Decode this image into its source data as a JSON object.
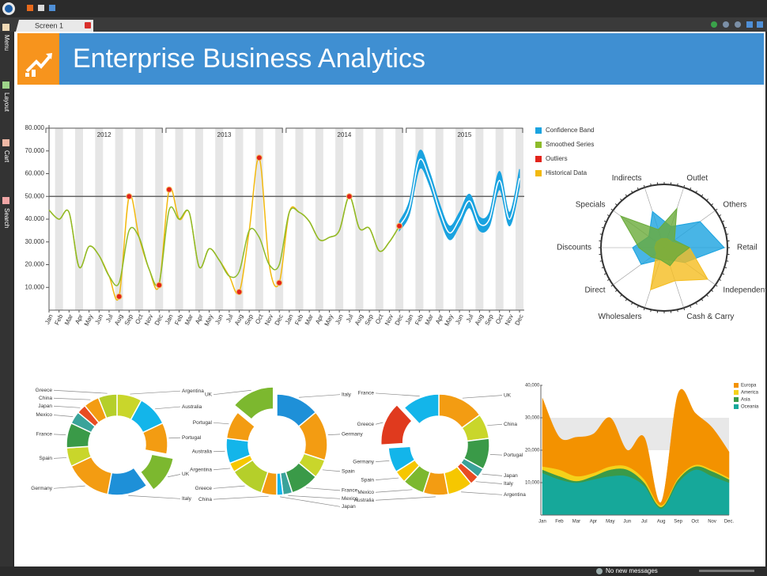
{
  "tab": {
    "title": "Screen 1"
  },
  "sidebar": {
    "items": [
      "Menu",
      "Layout",
      "Cart",
      "Search"
    ]
  },
  "header": {
    "title": "Enterprise Business Analytics"
  },
  "status": {
    "message": "No new messages"
  },
  "chart_data": [
    {
      "type": "line",
      "categories": [
        "Jan",
        "Feb",
        "Mar",
        "Apr",
        "May",
        "Jun",
        "Jul",
        "Aug",
        "Sep",
        "Oct",
        "Nov",
        "Dec",
        "Jan",
        "Feb",
        "Mar",
        "Apr",
        "May",
        "Jun",
        "Jul",
        "Aug",
        "Sep",
        "Oct",
        "Nov",
        "Dec",
        "Jan",
        "Feb",
        "Mar",
        "Apr",
        "May",
        "Jun",
        "Jul",
        "Aug",
        "Sep",
        "Oct",
        "Nov",
        "Dec",
        "Jan",
        "Feb",
        "Mar",
        "Apr",
        "May",
        "Jun",
        "Jul",
        "Aug",
        "Sep",
        "Oct",
        "Nov",
        "Dec"
      ],
      "year_labels": [
        "2012",
        "2013",
        "2014",
        "2015"
      ],
      "ylim": [
        0,
        80000
      ],
      "yticks": [
        {
          "value": 10000,
          "label": "10.000"
        },
        {
          "value": 20000,
          "label": "20.000"
        },
        {
          "value": 30000,
          "label": "30.000"
        },
        {
          "value": 40000,
          "label": "40.000"
        },
        {
          "value": 50000,
          "label": "50.000"
        },
        {
          "value": 60000,
          "label": "60.000"
        },
        {
          "value": 70000,
          "label": "70.000"
        },
        {
          "value": 80000,
          "label": "80.000"
        }
      ],
      "threshold": 50000,
      "series": [
        {
          "name": "Confidence Band",
          "type": "range",
          "color": "#1aa3e0",
          "values": [
            null,
            null,
            null,
            null,
            null,
            null,
            null,
            null,
            null,
            null,
            null,
            null,
            null,
            null,
            null,
            null,
            null,
            null,
            null,
            null,
            null,
            null,
            null,
            null,
            null,
            null,
            null,
            null,
            null,
            null,
            null,
            null,
            null,
            null,
            null,
            37000,
            45000,
            66000,
            58000,
            44000,
            34000,
            40000,
            48000,
            38000,
            40000,
            57000,
            40000,
            58000
          ],
          "upper": [
            null,
            null,
            null,
            null,
            null,
            null,
            null,
            null,
            null,
            null,
            null,
            null,
            null,
            null,
            null,
            null,
            null,
            null,
            null,
            null,
            null,
            null,
            null,
            null,
            null,
            null,
            null,
            null,
            null,
            null,
            null,
            null,
            null,
            null,
            null,
            39000,
            48000,
            70000,
            61000,
            47000,
            37000,
            43000,
            51000,
            41000,
            43000,
            61000,
            43000,
            62000
          ],
          "lower": [
            null,
            null,
            null,
            null,
            null,
            null,
            null,
            null,
            null,
            null,
            null,
            null,
            null,
            null,
            null,
            null,
            null,
            null,
            null,
            null,
            null,
            null,
            null,
            null,
            null,
            null,
            null,
            null,
            null,
            null,
            null,
            null,
            null,
            null,
            null,
            35000,
            42000,
            62000,
            55000,
            41000,
            31000,
            37000,
            45000,
            35000,
            37000,
            53000,
            37000,
            54000
          ]
        },
        {
          "name": "Smoothed Series",
          "type": "line",
          "color": "#8dbb2a",
          "values": [
            44000,
            40000,
            43000,
            19000,
            28000,
            24000,
            15000,
            12000,
            35000,
            32000,
            18000,
            12000,
            44000,
            40000,
            43000,
            19000,
            27000,
            22000,
            15000,
            17000,
            35000,
            32000,
            20000,
            20000,
            43000,
            43000,
            39000,
            31000,
            32000,
            35000,
            50000,
            36000,
            36000,
            26000,
            30000,
            37000,
            null,
            null,
            null,
            null,
            null,
            null,
            null,
            null,
            null,
            null,
            null,
            null
          ]
        },
        {
          "name": "Outliers",
          "type": "scatter",
          "color": "#e2231a",
          "values": [
            null,
            null,
            null,
            null,
            null,
            null,
            null,
            6000,
            50000,
            null,
            null,
            11000,
            53000,
            null,
            null,
            null,
            null,
            null,
            null,
            8000,
            null,
            67000,
            null,
            12000,
            null,
            null,
            null,
            null,
            null,
            null,
            50000,
            null,
            null,
            null,
            null,
            37000,
            null,
            null,
            null,
            null,
            null,
            null,
            null,
            null,
            null,
            null,
            null,
            null
          ]
        },
        {
          "name": "Historical Data",
          "type": "line",
          "color": "#f2b90f",
          "values": [
            44000,
            40000,
            43000,
            19000,
            28000,
            24000,
            15000,
            6000,
            50000,
            32000,
            18000,
            11000,
            53000,
            40000,
            43000,
            19000,
            27000,
            22000,
            15000,
            8000,
            35000,
            67000,
            20000,
            12000,
            43000,
            43000,
            39000,
            31000,
            32000,
            35000,
            50000,
            36000,
            36000,
            26000,
            30000,
            37000,
            null,
            null,
            null,
            null,
            null,
            null,
            null,
            null,
            null,
            null,
            null,
            null
          ]
        }
      ]
    },
    {
      "type": "radar",
      "categories": [
        "Retail",
        "Independents",
        "Cash & Carry",
        "Wholesalers",
        "Direct",
        "Discounts",
        "Specials",
        "Indirects",
        "Outlet",
        "Others"
      ],
      "rlim": [
        0,
        100
      ],
      "series": [
        {
          "color": "#1aa3e0",
          "values": [
            95,
            40,
            20,
            20,
            45,
            50,
            30,
            60,
            35,
            70
          ]
        },
        {
          "color": "#f5bd1f",
          "values": [
            40,
            85,
            55,
            70,
            15,
            15,
            15,
            15,
            15,
            15
          ]
        },
        {
          "color": "#6aab3a",
          "values": [
            40,
            25,
            30,
            20,
            25,
            40,
            85,
            30,
            65,
            20
          ]
        }
      ]
    },
    {
      "type": "pie",
      "exploded": 3,
      "categories": [
        "Argentina",
        "Australia",
        "Portugal",
        "UK",
        "Italy",
        "Germany",
        "Spain",
        "France",
        "Mexico",
        "Japan",
        "China",
        "Greece"
      ],
      "values": [
        8,
        10,
        10,
        12,
        13,
        15,
        6,
        8,
        4,
        3,
        5,
        6
      ],
      "colors": [
        "#c9d62b",
        "#13b5ea",
        "#f39c12",
        "#7cb82f",
        "#1e90d8",
        "#f39c12",
        "#c9d62b",
        "#3a9a48",
        "#3aa39a",
        "#e84c22",
        "#f39c12",
        "#b5cf2a"
      ]
    },
    {
      "type": "pie",
      "exploded": 11,
      "categories": [
        "Italy",
        "Germany",
        "Spain",
        "France",
        "Mexico",
        "Japan",
        "China",
        "Greece",
        "Argentina",
        "Australia",
        "Portugal",
        "UK"
      ],
      "values": [
        14,
        16,
        6,
        9,
        3,
        2,
        5,
        11,
        3,
        8,
        9,
        14
      ],
      "colors": [
        "#1e90d8",
        "#f39c12",
        "#c9d62b",
        "#3a9a48",
        "#3aa39a",
        "#13b5ea",
        "#f39c12",
        "#b5cf2a",
        "#f6c700",
        "#13b5ea",
        "#f39c12",
        "#7cb82f"
      ]
    },
    {
      "type": "pie",
      "exploded": 10,
      "categories": [
        "UK",
        "China",
        "Portugal",
        "Japan",
        "Italy",
        "Argentina",
        "Australia",
        "Mexico",
        "Spain",
        "Germany",
        "Greece",
        "France"
      ],
      "values": [
        15,
        8,
        10,
        3,
        3,
        8,
        8,
        7,
        4,
        8,
        14,
        12
      ],
      "colors": [
        "#f39c12",
        "#c9d62b",
        "#3a9a48",
        "#3aa39a",
        "#e84c22",
        "#f6c700",
        "#f39c12",
        "#7cb82f",
        "#f6c700",
        "#13b5ea",
        "#e03a1e",
        "#13b5ea"
      ]
    },
    {
      "type": "area",
      "stacked": true,
      "categories": [
        "Jan",
        "Feb",
        "Mar",
        "Apr",
        "May",
        "Jun",
        "Jul",
        "Aug",
        "Sep",
        "Oct",
        "Nov",
        "Dec."
      ],
      "ylim": [
        0,
        40000
      ],
      "yticks": [
        {
          "value": 10000,
          "label": "10,000"
        },
        {
          "value": 20000,
          "label": "20,000"
        },
        {
          "value": 30000,
          "label": "30,000"
        },
        {
          "value": 40000,
          "label": "40,000"
        }
      ],
      "plot_band": [
        20000,
        30000
      ],
      "series": [
        {
          "name": "Europa",
          "color": "#f39200",
          "values": [
            21000,
            10000,
            12000,
            12000,
            15000,
            5000,
            13000,
            1000,
            26000,
            16000,
            13000,
            8000
          ]
        },
        {
          "name": "America",
          "color": "#f5d21a",
          "values": [
            1000,
            2000,
            1500,
            1000,
            1000,
            1000,
            1000,
            500,
            500,
            500,
            500,
            500
          ]
        },
        {
          "name": "Asia",
          "color": "#3a9a48",
          "values": [
            1000,
            1000,
            500,
            1000,
            2000,
            2000,
            1000,
            500,
            1000,
            1000,
            1500,
            1000
          ]
        },
        {
          "name": "Oceania",
          "color": "#16a89a",
          "values": [
            13000,
            11000,
            10000,
            11000,
            12000,
            12000,
            9000,
            2000,
            10000,
            14000,
            12000,
            10000
          ]
        }
      ]
    }
  ]
}
